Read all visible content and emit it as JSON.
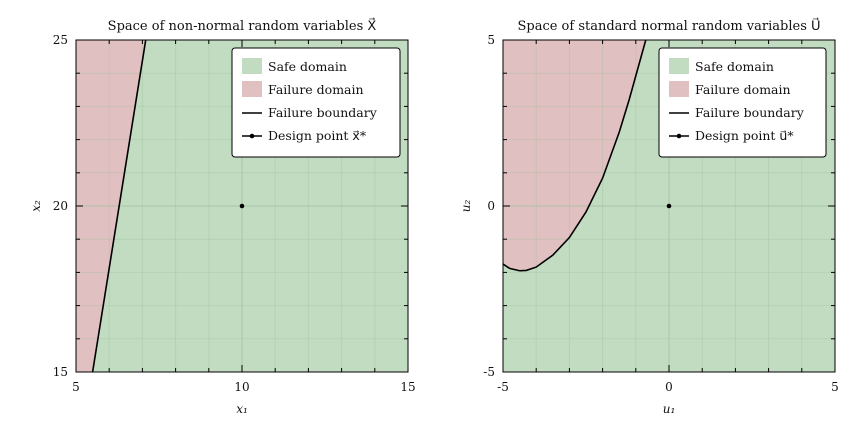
{
  "chart_data": [
    {
      "type": "area",
      "title": "Space of non-normal random variables X⃗",
      "xlabel": "x₁",
      "ylabel": "x₂",
      "xlim": [
        5,
        15
      ],
      "ylim": [
        15,
        25
      ],
      "xticks": [
        "5",
        "10",
        "15"
      ],
      "yticks": [
        "15",
        "20",
        "25"
      ],
      "grid": true,
      "legend_position": "top-right",
      "legend": [
        "Safe domain",
        "Failure domain",
        "Failure boundary",
        "Design point x⃗*"
      ],
      "failure_boundary": {
        "x": [
          5.5,
          7.1
        ],
        "y": [
          15,
          25
        ]
      },
      "design_point": {
        "x": 10,
        "y": 20
      },
      "colors": {
        "safe": "#c2dcc2",
        "failure": "#e1c0c1",
        "boundary": "#000000",
        "grid": "#9fbf9f"
      }
    },
    {
      "type": "area",
      "title": "Space of standard normal random variables U⃗",
      "xlabel": "u₁",
      "ylabel": "u₂",
      "xlim": [
        -5,
        5
      ],
      "ylim": [
        -5,
        5
      ],
      "xticks": [
        "-5",
        "0",
        "5"
      ],
      "yticks": [
        "-5",
        "0",
        "5"
      ],
      "grid": true,
      "legend_position": "top-right",
      "legend": [
        "Safe domain",
        "Failure domain",
        "Failure boundary",
        "Design point u⃗*"
      ],
      "failure_boundary": {
        "x": [
          -5.0,
          -4.8,
          -4.5,
          -4.3,
          -4.0,
          -3.5,
          -3.0,
          -2.5,
          -2.0,
          -1.5,
          -1.2,
          -0.7
        ],
        "y": [
          -1.75,
          -1.88,
          -1.95,
          -1.94,
          -1.84,
          -1.48,
          -0.95,
          -0.18,
          0.84,
          2.22,
          3.2,
          5.0
        ]
      },
      "design_point": {
        "x": 0,
        "y": 0
      },
      "colors": {
        "safe": "#c2dcc2",
        "failure": "#e1c0c1",
        "boundary": "#000000",
        "grid": "#9fbf9f"
      }
    }
  ]
}
